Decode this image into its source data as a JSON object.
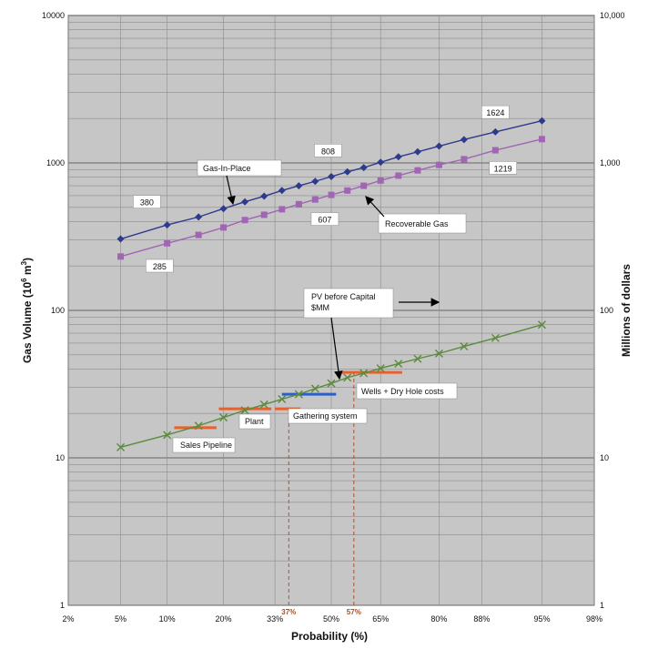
{
  "chart_data": {
    "type": "line",
    "xlabel": "Probability (%)",
    "ylabel_left_main": "Gas Volume (10",
    "ylabel_left_sup": "6",
    "ylabel_left_unit": " m",
    "ylabel_left_sup2": "3",
    "ylabel_left_end": ")",
    "ylabel_right": "Millions of dollars",
    "y_scale": "log",
    "ylim": [
      1,
      10000
    ],
    "grid": true,
    "x_ticks": [
      "2%",
      "5%",
      "10%",
      "20%",
      "33%",
      "50%",
      "65%",
      "80%",
      "88%",
      "95%",
      "98%"
    ],
    "x_tick_values": [
      2,
      5,
      10,
      20,
      33,
      50,
      65,
      80,
      88,
      95,
      98
    ],
    "y_ticks_left": [
      "1",
      "10",
      "100",
      "1000",
      "10000"
    ],
    "y_ticks_right": [
      "1",
      "10",
      "100",
      "1,000",
      "10,000"
    ],
    "y_tick_values": [
      1,
      10,
      100,
      1000,
      10000
    ],
    "series": [
      {
        "name": "Gas-In-Place",
        "color": "#2e3a8c",
        "marker": "diamond",
        "x": [
          5,
          10,
          15,
          20,
          25,
          30,
          35,
          40,
          45,
          50,
          55,
          60,
          65,
          70,
          75,
          80,
          85,
          90,
          95
        ],
        "y": [
          305,
          380,
          430,
          490,
          545,
          595,
          650,
          700,
          750,
          808,
          870,
          930,
          1010,
          1100,
          1190,
          1300,
          1440,
          1624,
          1930
        ]
      },
      {
        "name": "Recoverable Gas",
        "color": "#a066b3",
        "marker": "square",
        "x": [
          5,
          10,
          15,
          20,
          25,
          30,
          35,
          40,
          45,
          50,
          55,
          60,
          65,
          70,
          75,
          80,
          85,
          90,
          95
        ],
        "y": [
          232,
          285,
          325,
          365,
          410,
          445,
          485,
          525,
          565,
          607,
          650,
          700,
          760,
          820,
          890,
          970,
          1060,
          1219,
          1450
        ]
      },
      {
        "name": "PV before Capital $MM",
        "color": "#5a8a3c",
        "marker": "x",
        "x": [
          5,
          10,
          15,
          20,
          25,
          30,
          35,
          40,
          45,
          50,
          55,
          60,
          65,
          70,
          75,
          80,
          85,
          90,
          95
        ],
        "y": [
          11.8,
          14.3,
          16.5,
          18.8,
          21,
          23,
          25,
          27,
          29.5,
          32,
          35,
          37.5,
          40.5,
          43.5,
          47,
          51,
          57,
          65,
          80
        ]
      }
    ],
    "bars": [
      {
        "label": "Sales Pipeline",
        "x0": 11,
        "x1": 18.5,
        "y": 16,
        "color": "#e8602c"
      },
      {
        "label": "Plant",
        "x0": 19,
        "x1": 32,
        "y": 21.5,
        "color": "#e8602c"
      },
      {
        "label": "Gathering system",
        "x0": 33,
        "x1": 40.5,
        "y": 21.5,
        "color": "#e8602c"
      },
      {
        "label": "",
        "x0": 35,
        "x1": 51.5,
        "y": 27,
        "color": "#2e5ec8"
      },
      {
        "label": "Wells + Dry Hole costs",
        "x0": 52,
        "x1": 71,
        "y": 38,
        "color": "#e8602c"
      }
    ],
    "data_labels": [
      {
        "text": "380",
        "x": 7.5,
        "y": 530
      },
      {
        "text": "808",
        "x": 49,
        "y": 1180
      },
      {
        "text": "1624",
        "x": 90,
        "y": 2150
      },
      {
        "text": "285",
        "x": 9,
        "y": 195
      },
      {
        "text": "607",
        "x": 48,
        "y": 405
      },
      {
        "text": "1219",
        "x": 91,
        "y": 900
      }
    ],
    "annotations": {
      "gas_in_place": "Gas-In-Place",
      "recoverable_gas": "Recoverable Gas",
      "pv_line1": "PV before Capital",
      "pv_line2": "$MM",
      "sales_pipeline": "Sales Pipeline",
      "plant": "Plant",
      "gathering_system": "Gathering system",
      "wells_dry_hole": "Wells + Dry Hole costs"
    },
    "reference_lines": [
      {
        "label": "37%",
        "x": 37,
        "color": "#b5502d"
      },
      {
        "label": "57%",
        "x": 57,
        "color": "#b5502d"
      }
    ]
  }
}
